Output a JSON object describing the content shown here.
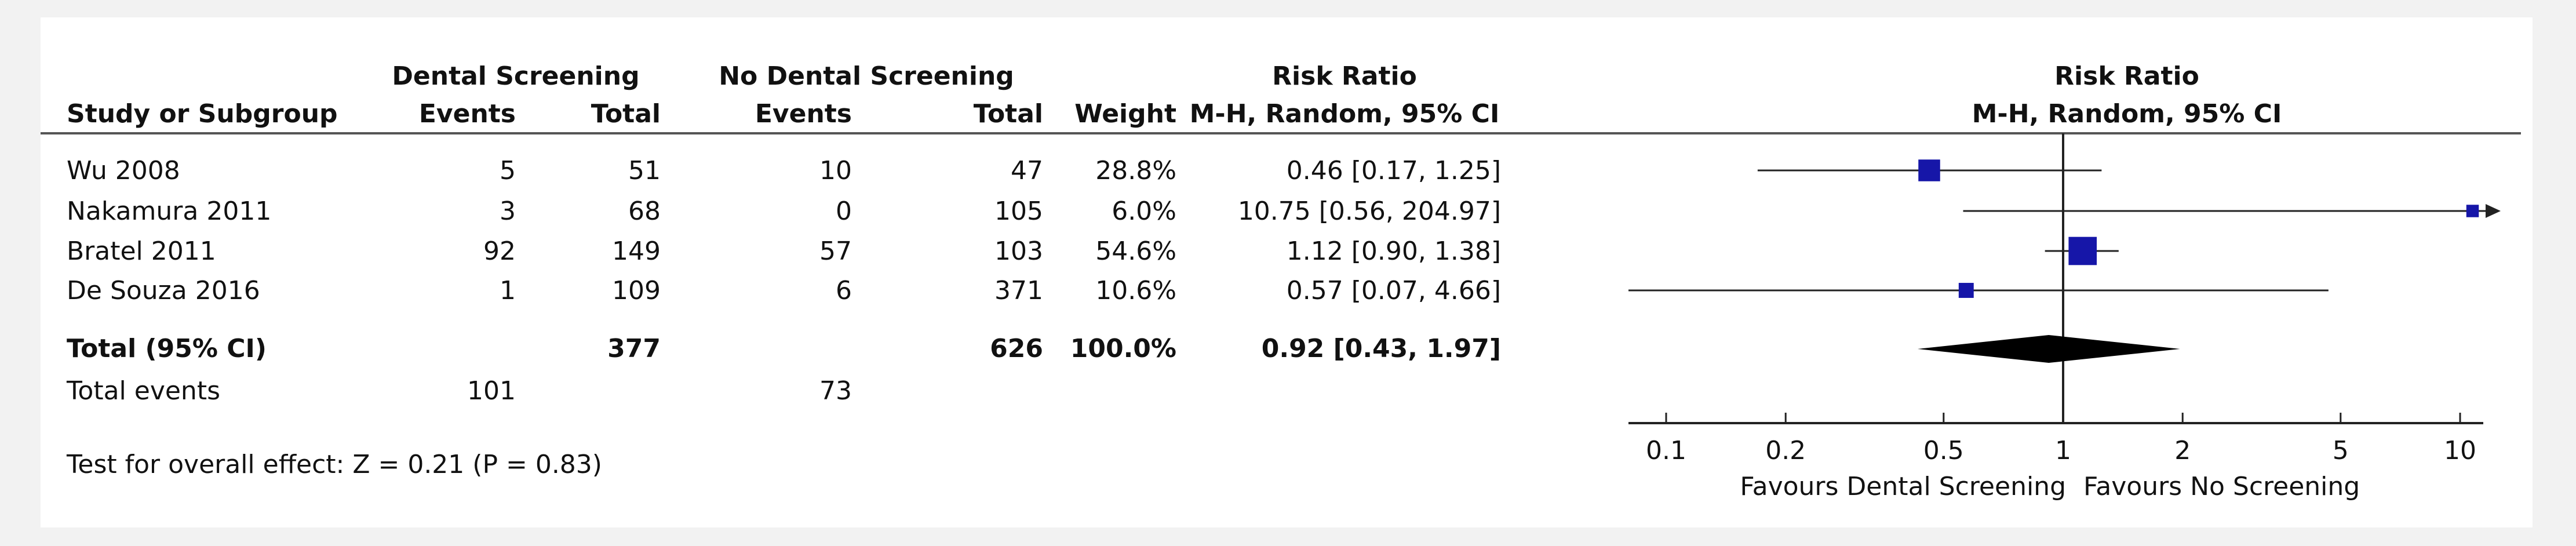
{
  "chart_data": {
    "type": "forest",
    "headers": {
      "study": "Study or Subgroup",
      "group1": "Dental Screening",
      "group2": "No Dental Screening",
      "events": "Events",
      "total": "Total",
      "weight": "Weight",
      "rr_title": "Risk Ratio",
      "rr_method": "M-H, Random, 95% CI",
      "plot_title": "Risk Ratio",
      "plot_method": "M-H, Random, 95% CI"
    },
    "studies": [
      {
        "name": "Wu 2008",
        "e1": "5",
        "t1": "51",
        "e2": "10",
        "t2": "47",
        "weight": "28.8%",
        "ci_text": "0.46 [0.17, 1.25]",
        "rr": 0.46,
        "lo": 0.17,
        "hi": 1.25,
        "w": 28.8
      },
      {
        "name": "Nakamura 2011",
        "e1": "3",
        "t1": "68",
        "e2": "0",
        "t2": "105",
        "weight": "6.0%",
        "ci_text": "10.75 [0.56, 204.97]",
        "rr": 10.75,
        "lo": 0.56,
        "hi": 204.97,
        "w": 6.0
      },
      {
        "name": "Bratel 2011",
        "e1": "92",
        "t1": "149",
        "e2": "57",
        "t2": "103",
        "weight": "54.6%",
        "ci_text": "1.12 [0.90, 1.38]",
        "rr": 1.12,
        "lo": 0.9,
        "hi": 1.38,
        "w": 54.6
      },
      {
        "name": "De Souza 2016",
        "e1": "1",
        "t1": "109",
        "e2": "6",
        "t2": "371",
        "weight": "10.6%",
        "ci_text": "0.57 [0.07, 4.66]",
        "rr": 0.57,
        "lo": 0.07,
        "hi": 4.66,
        "w": 10.6
      }
    ],
    "total": {
      "name": "Total (95% CI)",
      "t1": "377",
      "t2": "626",
      "weight": "100.0%",
      "ci_text": "0.92 [0.43, 1.97]",
      "rr": 0.92,
      "lo": 0.43,
      "hi": 1.97
    },
    "total_events": {
      "label": "Total events",
      "e1": "101",
      "e2": "73"
    },
    "overall_test": "Test for overall effect: Z = 0.21 (P = 0.83)",
    "x_scale": "log",
    "x_ticks": [
      0.1,
      0.2,
      0.5,
      1,
      2,
      5,
      10
    ],
    "x_tick_labels": [
      "0.1",
      "0.2",
      "0.5",
      "1",
      "2",
      "5",
      "10"
    ],
    "xlim": [
      0.1,
      10
    ],
    "favours_left": "Favours Dental Screening",
    "favours_right": "Favours No Screening",
    "colors": {
      "marker": "#1616a8",
      "diamond": "#000000",
      "line": "#222222"
    }
  }
}
